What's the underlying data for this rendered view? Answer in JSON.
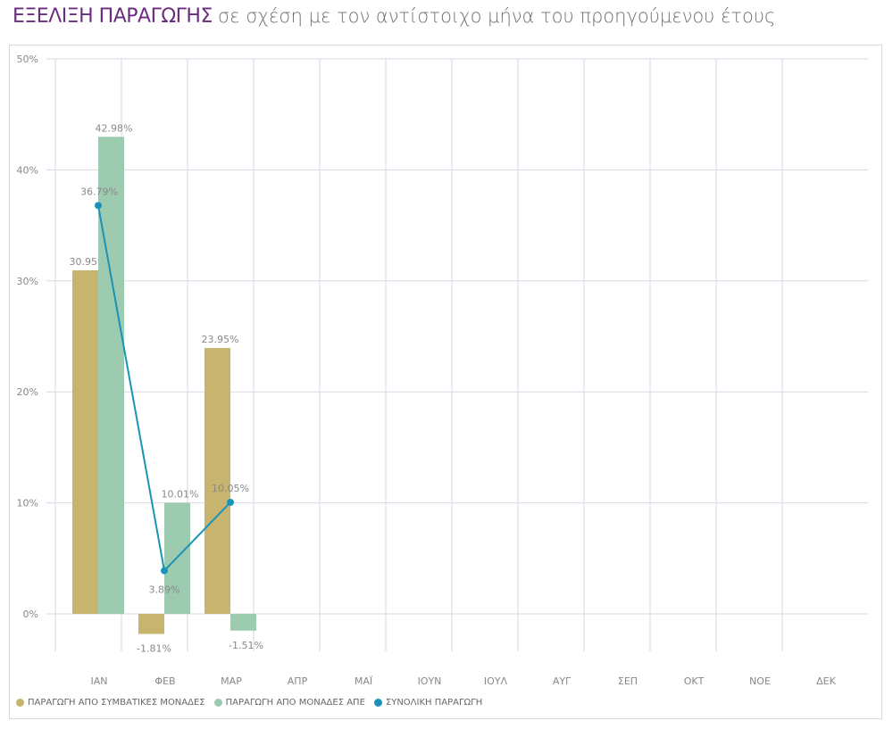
{
  "title": {
    "strong": "ΕΞΕΛΙΞΗ ΠΑΡΑΓΩΓΗΣ",
    "light": "σε σχέση με τον αντίστοιχο μήνα του προηγούμενου έτους"
  },
  "colors": {
    "conventional": "#c7b56f",
    "res": "#9ccbb0",
    "total": "#1a93b8",
    "grid": "#d9d7e6",
    "text": "#888888"
  },
  "chart_data": {
    "type": "bar",
    "categories": [
      "ΙΑΝ",
      "ΦΕΒ",
      "ΜΑΡ",
      "ΑΠΡ",
      "ΜΑΪ",
      "ΙΟΥΝ",
      "ΙΟΥΛ",
      "ΑΥΓ",
      "ΣΕΠ",
      "ΟΚΤ",
      "ΝΟΕ",
      "ΔΕΚ"
    ],
    "series": [
      {
        "name": "ΠΑΡΑΓΩΓΗ ΑΠΟ ΣΥΜΒΑΤΙΚΕΣ ΜΟΝΑΔΕΣ",
        "kind": "bar",
        "values": [
          30.95,
          -1.81,
          23.95,
          null,
          null,
          null,
          null,
          null,
          null,
          null,
          null,
          null
        ],
        "labels": [
          "30.95%",
          "-1.81%",
          "23.95%"
        ]
      },
      {
        "name": "ΠΑΡΑΓΩΓΗ ΑΠΟ ΜΟΝΑΔΕΣ ΑΠΕ",
        "kind": "bar",
        "values": [
          42.98,
          10.01,
          -1.51,
          null,
          null,
          null,
          null,
          null,
          null,
          null,
          null,
          null
        ],
        "labels": [
          "42.98%",
          "10.01%",
          "-1.51%"
        ]
      },
      {
        "name": "ΣΥΝΟΛΙΚΗ ΠΑΡΑΓΩΓΗ",
        "kind": "line",
        "values": [
          36.79,
          3.89,
          10.05,
          null,
          null,
          null,
          null,
          null,
          null,
          null,
          null,
          null
        ],
        "labels": [
          "36.79%",
          "3.89%",
          "10.05%"
        ]
      }
    ],
    "yticks": [
      "0%",
      "10%",
      "20%",
      "30%",
      "40%",
      "50%"
    ],
    "ytick_values": [
      0,
      10,
      20,
      30,
      40,
      50
    ],
    "ylim": [
      -5,
      50
    ],
    "grid": true,
    "legend_position": "bottom-left"
  }
}
